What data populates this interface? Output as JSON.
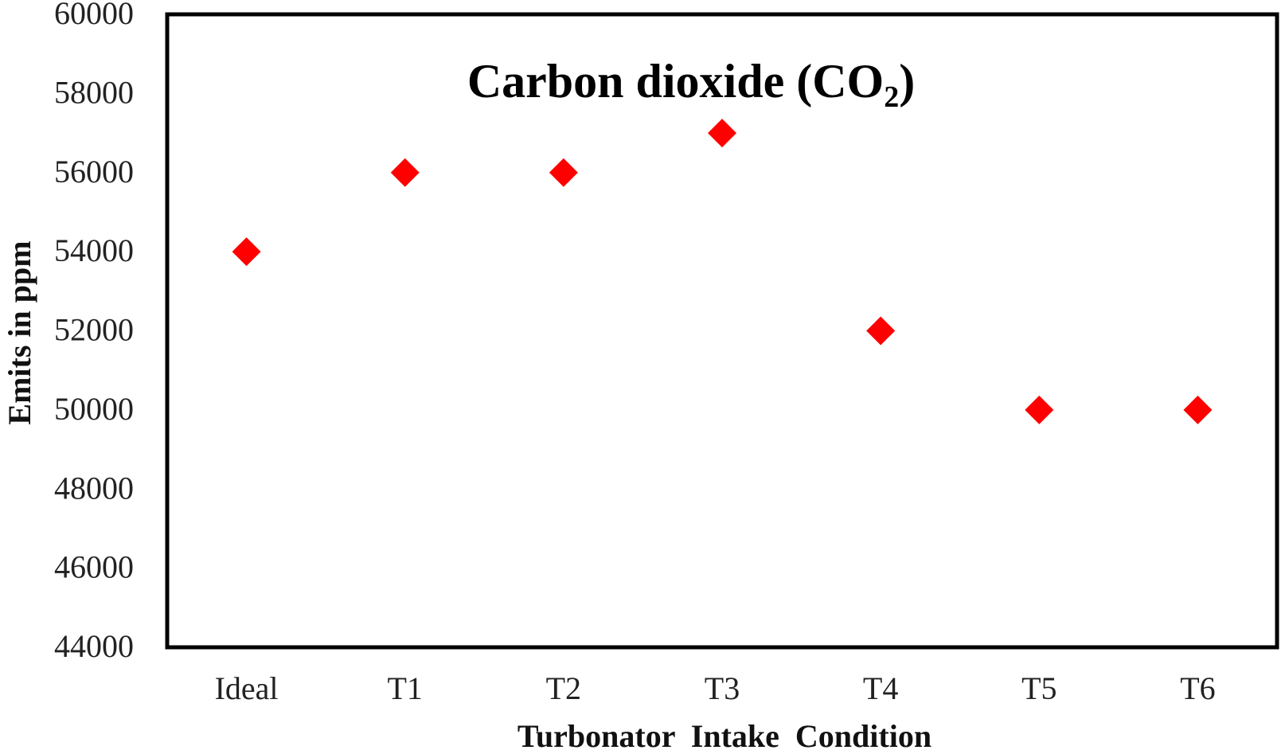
{
  "chart_data": {
    "type": "scatter",
    "title": "Carbon dioxide (CO",
    "title_subscript": "2",
    "title_suffix": ")",
    "xlabel": "Turbonator  Intake  Condition",
    "ylabel": "Emits  in ppm",
    "categories": [
      "Ideal",
      "T1",
      "T2",
      "T3",
      "T4",
      "T5",
      "T6"
    ],
    "series": [
      {
        "values": [
          54000,
          56000,
          56000,
          57000,
          52000,
          50000,
          50000
        ],
        "color": "#ff0000",
        "marker": "diamond"
      }
    ],
    "ylim": [
      44000,
      60000
    ],
    "yticks": [
      44000,
      46000,
      48000,
      50000,
      52000,
      54000,
      56000,
      58000,
      60000
    ],
    "grid": false,
    "legend": "none"
  }
}
